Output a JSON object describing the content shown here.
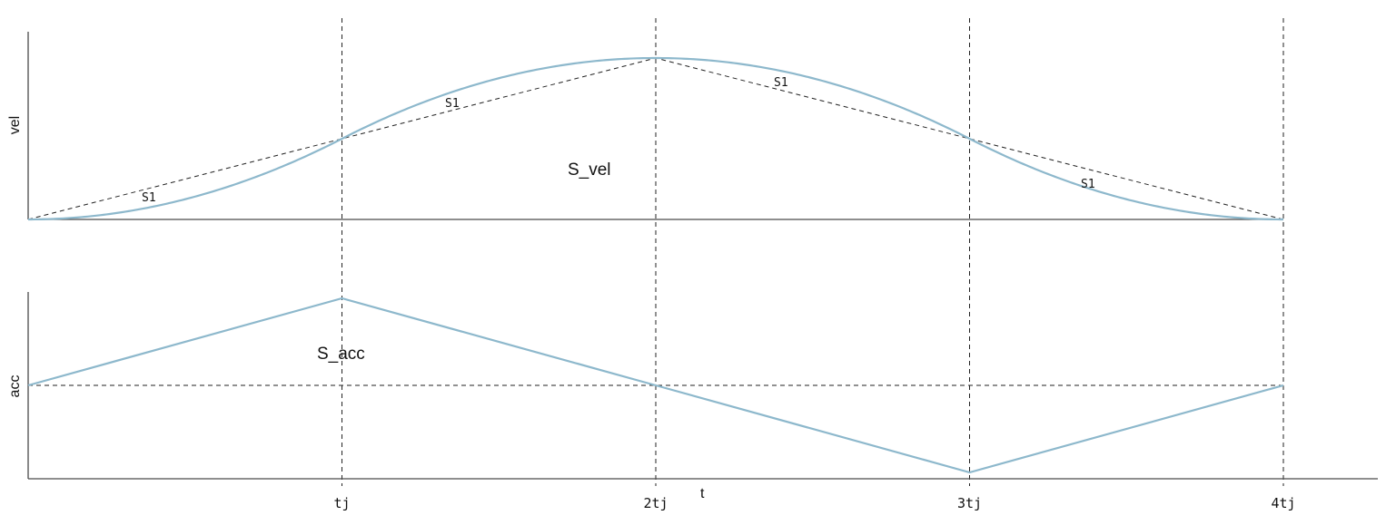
{
  "chart_data": [
    {
      "type": "line",
      "panel": "top",
      "ylabel": "vel",
      "annotation": "S_vel",
      "area_labels": [
        "S1",
        "S1",
        "S1",
        "S1"
      ],
      "x_ticks": [
        "tj",
        "2tj",
        "3tj",
        "4tj"
      ],
      "x_range": [
        0,
        4
      ],
      "y_range": [
        0,
        1
      ],
      "series": [
        {
          "kind": "s-curve",
          "color": "#8db8cc",
          "x": [
            0,
            0.5,
            1,
            1.5,
            2,
            2.5,
            3,
            3.5,
            4
          ],
          "values": [
            0,
            0.0625,
            0.5,
            0.9375,
            1,
            0.9375,
            0.5,
            0.0625,
            0
          ]
        },
        {
          "kind": "trapezoid-dashed",
          "color": "#222222",
          "x": [
            0,
            1,
            2,
            3,
            4
          ],
          "values": [
            0,
            0.5,
            1,
            0.5,
            0
          ]
        }
      ]
    },
    {
      "type": "line",
      "panel": "bottom",
      "ylabel": "acc",
      "xlabel": "t",
      "annotation": "S_acc",
      "x_ticks": [
        "tj",
        "2tj",
        "3tj",
        "4tj"
      ],
      "x_range": [
        0,
        4
      ],
      "y_range": [
        -1,
        1
      ],
      "baseline": 0,
      "series": [
        {
          "kind": "triangle",
          "color": "#8db8cc",
          "x": [
            0,
            1,
            2,
            3,
            4
          ],
          "values": [
            0,
            1,
            0,
            -1,
            0
          ]
        }
      ]
    }
  ]
}
